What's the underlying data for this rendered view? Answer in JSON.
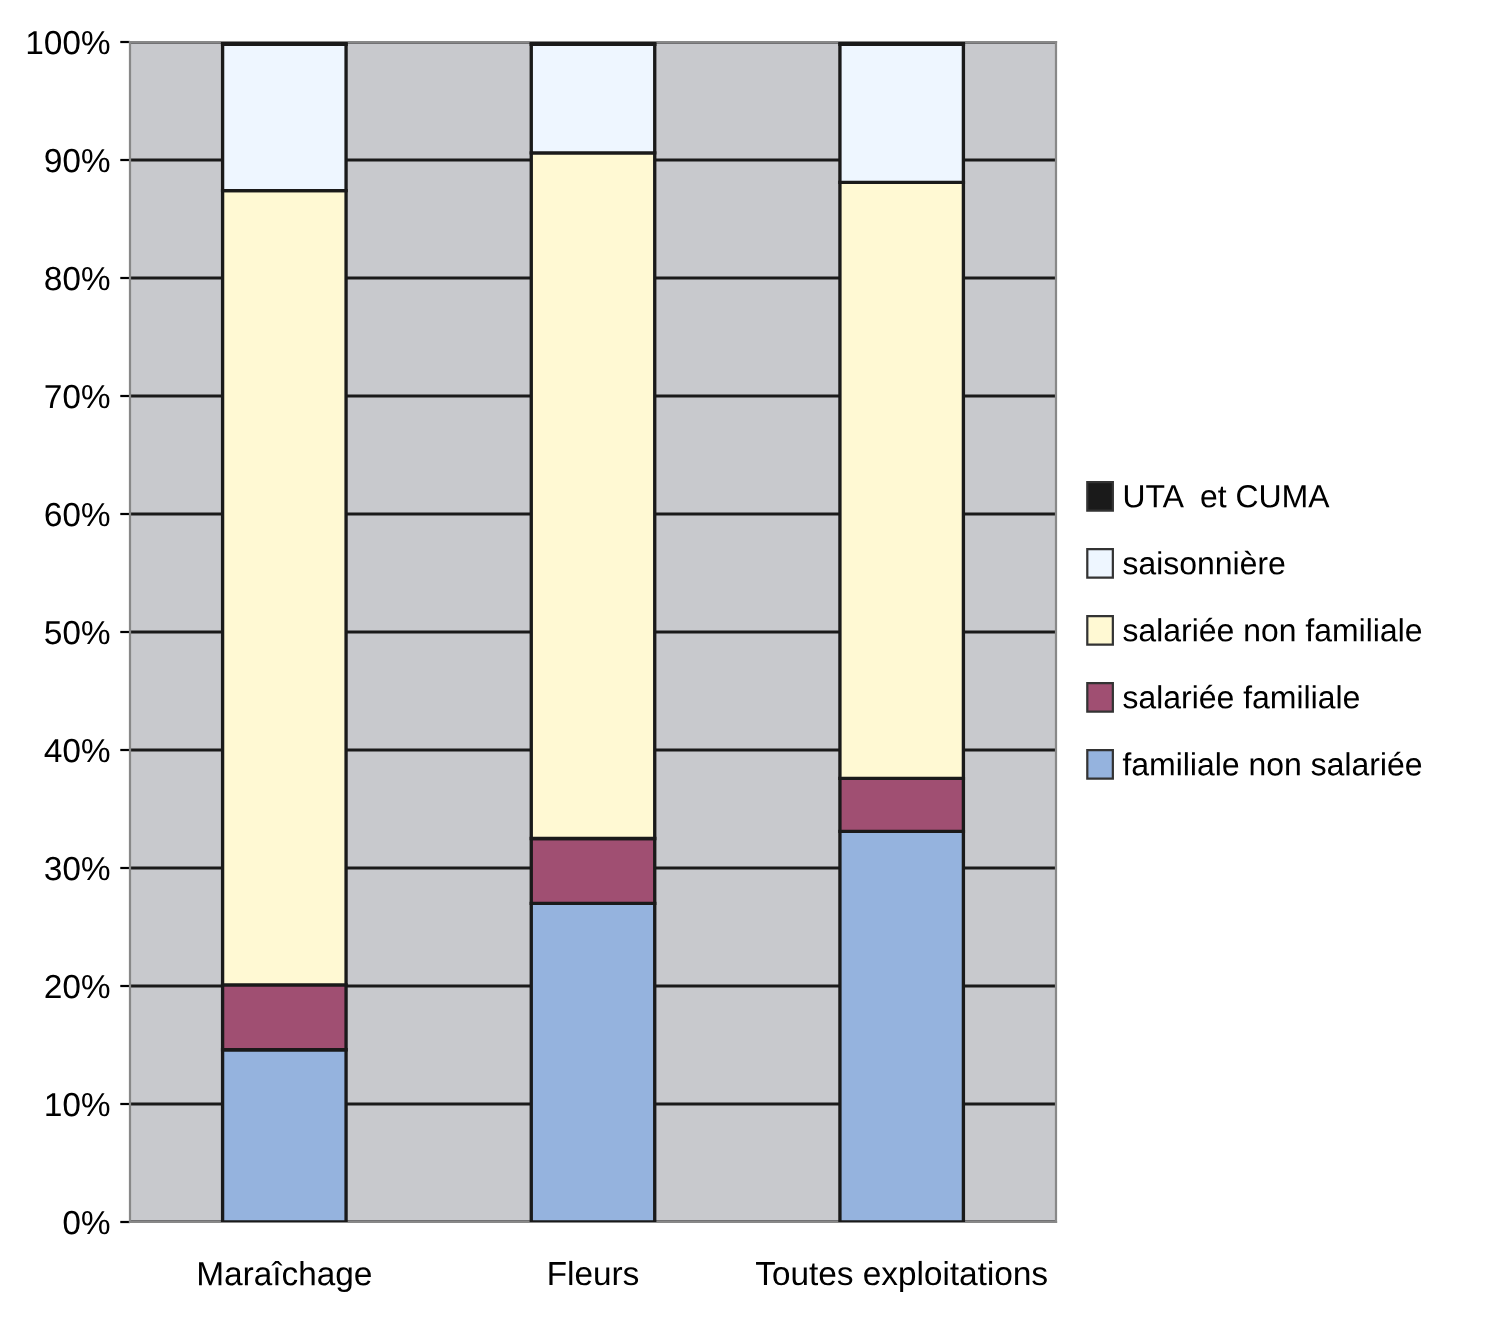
{
  "chart_data": {
    "type": "bar",
    "stacked": true,
    "categories": [
      "Maraîchage",
      "Fleurs",
      "Toutes exploitations"
    ],
    "series": [
      {
        "name": "familiale non salariée",
        "color": "#95b3de",
        "values": [
          14.6,
          27.0,
          33.1
        ]
      },
      {
        "name": "salariée familiale",
        "color": "#a04f72",
        "values": [
          5.5,
          5.5,
          4.5
        ]
      },
      {
        "name": "salariée non familiale",
        "color": "#fff9d3",
        "values": [
          67.3,
          58.1,
          50.5
        ]
      },
      {
        "name": "saisonnière",
        "color": "#eef6ff",
        "values": [
          12.4,
          9.2,
          11.7
        ]
      },
      {
        "name": "UTA  et CUMA",
        "color": "#1a1a1a",
        "values": [
          0.2,
          0.2,
          0.2
        ]
      }
    ],
    "ylim": [
      0,
      100
    ],
    "yticks": [
      {
        "value": 0,
        "label": "0%"
      },
      {
        "value": 10,
        "label": "10%"
      },
      {
        "value": 20,
        "label": "20%"
      },
      {
        "value": 30,
        "label": "30%"
      },
      {
        "value": 40,
        "label": "40%"
      },
      {
        "value": 50,
        "label": "50%"
      },
      {
        "value": 60,
        "label": "60%"
      },
      {
        "value": 70,
        "label": "70%"
      },
      {
        "value": 80,
        "label": "80%"
      },
      {
        "value": 90,
        "label": "90%"
      },
      {
        "value": 100,
        "label": "100%"
      }
    ],
    "grid": "y",
    "legend": "right"
  }
}
